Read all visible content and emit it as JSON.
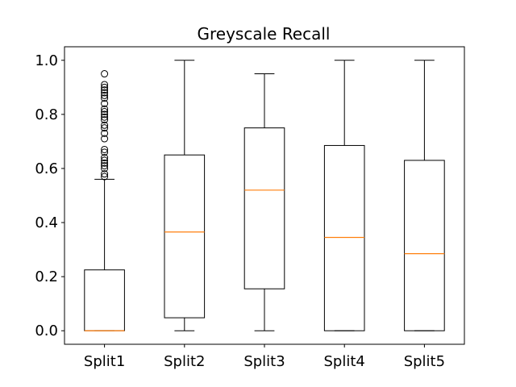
{
  "chart_data": {
    "type": "box",
    "title": "Greyscale Recall",
    "xlabel": "",
    "ylabel": "",
    "ylim": [
      -0.05,
      1.05
    ],
    "yticks": [
      "0.0",
      "0.2",
      "0.4",
      "0.6",
      "0.8",
      "1.0"
    ],
    "grid": false,
    "colors": {
      "box": "#000000",
      "median": "#ff7f0e",
      "flier": "#000000"
    },
    "categories": [
      "Split1",
      "Split2",
      "Split3",
      "Split4",
      "Split5"
    ],
    "boxes": [
      {
        "label": "Split1",
        "whisker_low": 0.0,
        "q1": 0.0,
        "median": 0.0,
        "q3": 0.225,
        "whisker_high": 0.56,
        "outliers": [
          0.57,
          0.58,
          0.6,
          0.61,
          0.62,
          0.63,
          0.64,
          0.66,
          0.67,
          0.71,
          0.73,
          0.75,
          0.76,
          0.78,
          0.79,
          0.8,
          0.81,
          0.82,
          0.84,
          0.86,
          0.87,
          0.88,
          0.89,
          0.9,
          0.91,
          0.95
        ]
      },
      {
        "label": "Split2",
        "whisker_low": 0.0,
        "q1": 0.048,
        "median": 0.365,
        "q3": 0.65,
        "whisker_high": 1.0,
        "outliers": []
      },
      {
        "label": "Split3",
        "whisker_low": 0.0,
        "q1": 0.155,
        "median": 0.52,
        "q3": 0.75,
        "whisker_high": 0.95,
        "outliers": []
      },
      {
        "label": "Split4",
        "whisker_low": 0.0,
        "q1": 0.0,
        "median": 0.345,
        "q3": 0.685,
        "whisker_high": 1.0,
        "outliers": []
      },
      {
        "label": "Split5",
        "whisker_low": 0.0,
        "q1": 0.0,
        "median": 0.285,
        "q3": 0.63,
        "whisker_high": 1.0,
        "outliers": []
      }
    ]
  }
}
